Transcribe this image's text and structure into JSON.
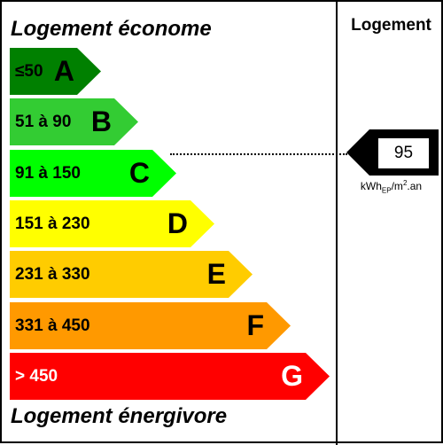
{
  "heading_top": "Logement économe",
  "heading_bottom": "Logement énergivore",
  "right_title": "Logement",
  "classes": [
    {
      "letter": "A",
      "range": "≤50",
      "color": "#008000"
    },
    {
      "letter": "B",
      "range": "51 à 90",
      "color": "#33cc33"
    },
    {
      "letter": "C",
      "range": "91 à 150",
      "color": "#00ff00"
    },
    {
      "letter": "D",
      "range": "151 à 230",
      "color": "#ffff00"
    },
    {
      "letter": "E",
      "range": "231 à 330",
      "color": "#ffcc00"
    },
    {
      "letter": "F",
      "range": "331 à 450",
      "color": "#ff9900"
    },
    {
      "letter": "G",
      "range": "> 450",
      "color": "#ff0000"
    }
  ],
  "indicator": {
    "value": "95",
    "class": "C",
    "unit_main": "kWh",
    "unit_sub": "EP",
    "unit_mid": "/m",
    "unit_sup": "2",
    "unit_end": ".an"
  }
}
